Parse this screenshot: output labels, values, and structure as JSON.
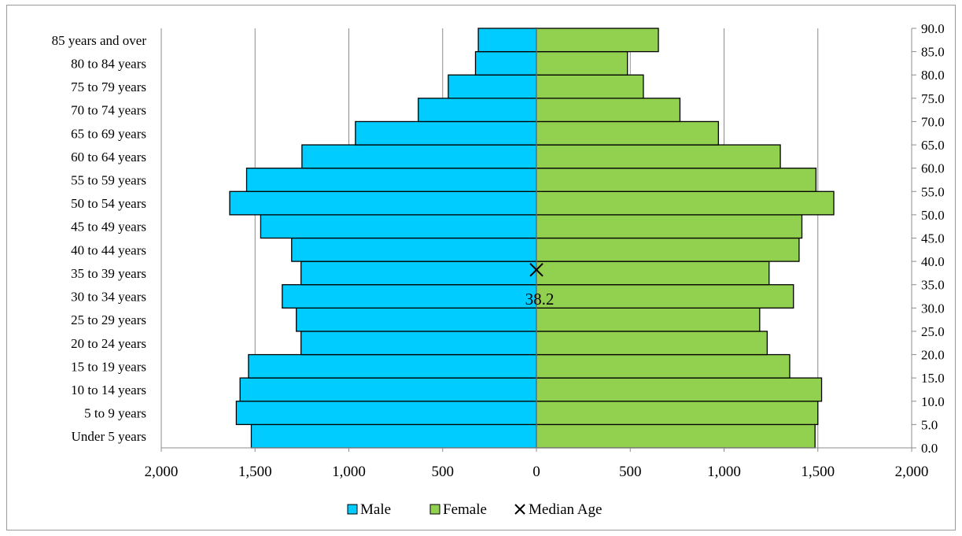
{
  "chart_data": {
    "type": "bar",
    "orientation": "horizontal-population-pyramid",
    "categories": [
      "Under 5 years",
      "5 to 9 years",
      "10 to 14 years",
      "15 to 19 years",
      "20 to 24 years",
      "25 to 29 years",
      "30 to 34 years",
      "35 to 39 years",
      "40 to 44 years",
      "45 to 49 years",
      "50 to 54 years",
      "55 to 59 years",
      "60 to 64 years",
      "65 to 69 years",
      "70 to 74 years",
      "75 to 79 years",
      "80 to 84 years",
      "85 years and over"
    ],
    "series": [
      {
        "name": "Male",
        "color": "#00ccff",
        "values": [
          1520,
          1600,
          1580,
          1535,
          1255,
          1280,
          1355,
          1255,
          1305,
          1470,
          1635,
          1545,
          1250,
          965,
          630,
          470,
          325,
          310
        ]
      },
      {
        "name": "Female",
        "color": "#92d050",
        "values": [
          1485,
          1500,
          1520,
          1350,
          1230,
          1190,
          1370,
          1240,
          1400,
          1415,
          1585,
          1490,
          1300,
          970,
          765,
          570,
          485,
          650
        ]
      }
    ],
    "median_age": {
      "name": "Median Age",
      "value": 38.2,
      "label": "38.2"
    },
    "x_ticks": [
      "2,000",
      "1,500",
      "1,000",
      "500",
      "0",
      "500",
      "1,000",
      "1,500",
      "2,000"
    ],
    "xlim": [
      -2000,
      2000
    ],
    "y2_ticks": [
      "0.0",
      "5.0",
      "10.0",
      "15.0",
      "20.0",
      "25.0",
      "30.0",
      "35.0",
      "40.0",
      "45.0",
      "50.0",
      "55.0",
      "60.0",
      "65.0",
      "70.0",
      "75.0",
      "80.0",
      "85.0",
      "90.0"
    ],
    "y2lim": [
      0,
      90
    ],
    "grid": "vertical",
    "legend_position": "bottom"
  },
  "legend": {
    "male": "Male",
    "female": "Female",
    "median": "Median Age"
  }
}
